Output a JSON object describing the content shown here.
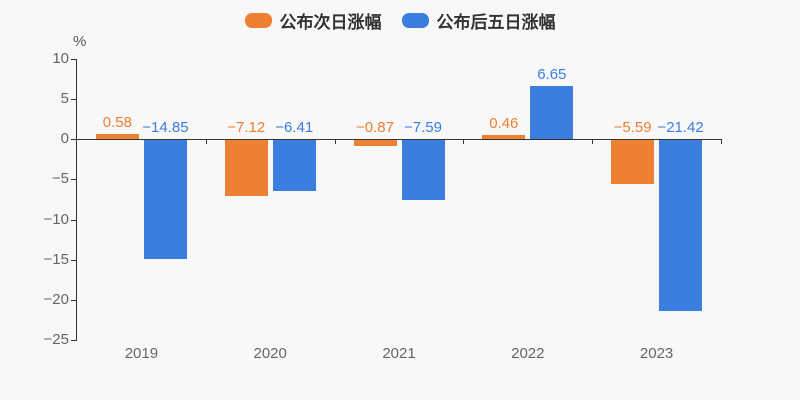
{
  "legend": {
    "items": [
      {
        "label": "公布次日涨幅",
        "color": "#ed8033"
      },
      {
        "label": "公布后五日涨幅",
        "color": "#3a7fe0"
      }
    ]
  },
  "axis": {
    "unit_label": "%"
  },
  "chart_data": {
    "type": "bar",
    "title": "",
    "categories": [
      "2019",
      "2020",
      "2021",
      "2022",
      "2023"
    ],
    "series": [
      {
        "name": "公布次日涨幅",
        "color": "#ed8033",
        "values": [
          0.58,
          -7.12,
          -0.87,
          0.46,
          -5.59
        ]
      },
      {
        "name": "公布后五日涨幅",
        "color": "#3a7fe0",
        "values": [
          -14.85,
          -6.41,
          -7.59,
          6.65,
          -21.42
        ]
      }
    ],
    "xlabel": "",
    "ylabel": "%",
    "ylim": [
      -25,
      10
    ],
    "ytick_step": 5,
    "grid": false,
    "legend_position": "top",
    "value_labels": true
  }
}
